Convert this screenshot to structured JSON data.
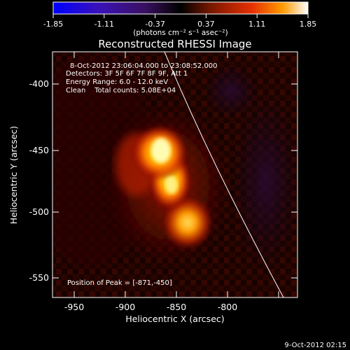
{
  "colorbar": {
    "ticks": [
      "-1.85",
      "-1.11",
      "-0.37",
      "0.37",
      "1.11",
      "1.85"
    ],
    "unit_label": "(photons cm⁻² s⁻¹ asec⁻²)"
  },
  "title": "Reconstructed RHESSI Image",
  "info": {
    "time_range": "8-Oct-2012 23:06:04.000 to 23:08:52.000",
    "detectors": "Detectors: 3F 5F 6F 7F 8F 9F, Att 1",
    "energy": "Energy Range: 6.0 - 12.0 keV",
    "clean": "Clean    Total counts: 5.08E+04",
    "peak": "Position of Peak = [-871,-450]"
  },
  "axes": {
    "xlabel": "Heliocentric X (arcsec)",
    "ylabel": "Heliocentric Y (arcsec)",
    "xticks": [
      "-950",
      "-900",
      "-850",
      "-800"
    ],
    "yticks": [
      "-400",
      "-450",
      "-500",
      "-550"
    ]
  },
  "timestamp": "9-Oct-2012 02:15"
}
